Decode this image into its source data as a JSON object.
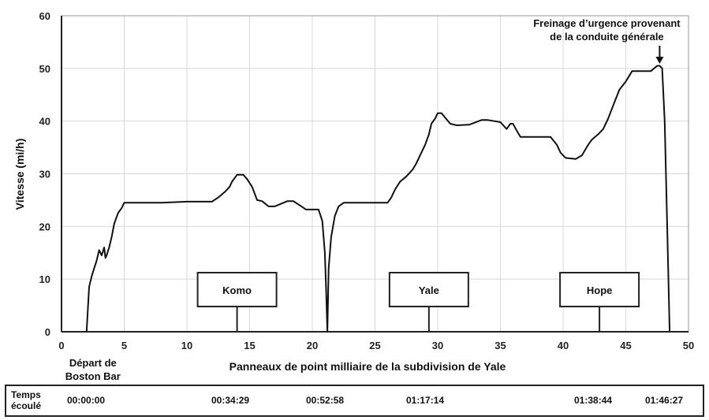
{
  "chart_data": {
    "type": "line",
    "xlabel": "Panneaux de point milliaire de la subdivision de Yale",
    "ylabel": "Vitesse (mi/h)",
    "xlim": [
      0,
      50
    ],
    "ylim": [
      0,
      60
    ],
    "x_ticks": [
      0,
      5,
      10,
      15,
      20,
      25,
      30,
      35,
      40,
      45,
      50
    ],
    "y_ticks": [
      0,
      10,
      20,
      30,
      40,
      50,
      60
    ],
    "grid": true,
    "series": [
      {
        "color": "#111111",
        "x": [
          2.0,
          2.2,
          2.4,
          2.6,
          2.8,
          3.0,
          3.2,
          3.4,
          3.5,
          3.6,
          3.8,
          4.0,
          4.2,
          4.5,
          4.8,
          5.0,
          5.2,
          6.0,
          8.0,
          10.0,
          12.0,
          12.5,
          13.0,
          13.4,
          13.6,
          14.0,
          14.5,
          14.8,
          15.2,
          15.6,
          16.0,
          16.5,
          17.0,
          18.0,
          18.5,
          19.5,
          20.0,
          20.5,
          20.8,
          21.0,
          21.1,
          21.2,
          21.3,
          21.5,
          21.8,
          22.1,
          22.5,
          23.0,
          24.0,
          25.0,
          26.0,
          26.3,
          26.6,
          27.0,
          27.5,
          28.0,
          28.3,
          28.6,
          29.0,
          29.3,
          29.5,
          29.8,
          30.0,
          30.3,
          31.0,
          31.5,
          32.5,
          33.5,
          34.0,
          35.0,
          35.5,
          35.8,
          36.0,
          36.3,
          36.6,
          37.0,
          39.0,
          39.5,
          39.8,
          40.2,
          41.0,
          41.5,
          42.0,
          42.3,
          42.8,
          43.2,
          43.6,
          44.0,
          44.5,
          45.0,
          45.5,
          46.0,
          46.5,
          47.0,
          47.5,
          47.7,
          47.9,
          48.1,
          48.3,
          48.5
        ],
        "y": [
          0,
          8.5,
          10.5,
          12,
          13.5,
          15.5,
          14.5,
          16,
          14,
          14.5,
          16,
          18,
          20.5,
          22.5,
          23.5,
          24.5,
          24.5,
          24.5,
          24.5,
          24.7,
          24.7,
          25.5,
          26.5,
          27.5,
          28.5,
          29.8,
          29.8,
          29,
          27.5,
          25,
          24.8,
          23.8,
          23.8,
          24.8,
          24.8,
          23.2,
          23.2,
          23.2,
          21,
          15,
          8,
          0,
          12,
          18,
          22,
          23.8,
          24.5,
          24.5,
          24.5,
          24.5,
          24.5,
          25.5,
          27,
          28.5,
          29.5,
          30.8,
          32,
          33.5,
          35.5,
          37.5,
          39.5,
          40.5,
          41.5,
          41.5,
          39.5,
          39.2,
          39.3,
          40.2,
          40.2,
          39.8,
          38.5,
          39.5,
          39.5,
          38.2,
          37,
          37,
          37,
          35.5,
          34,
          33,
          32.8,
          33.5,
          35.5,
          36.5,
          37.5,
          38.5,
          40.5,
          43,
          46,
          47.5,
          49.5,
          49.5,
          49.5,
          49.5,
          50.5,
          50.5,
          50,
          40,
          20,
          0
        ]
      }
    ],
    "annotations": [
      {
        "text_lines": [
          "Freinage d’urgence provenant",
          "de la conduite générale"
        ],
        "x": 47.7,
        "y": 50.5,
        "arrow": true
      },
      {
        "text_lines": [
          "Départ de",
          "Boston Bar"
        ],
        "x": 2.0
      }
    ],
    "signs": [
      {
        "label": "Komo",
        "x": 14.0
      },
      {
        "label": "Yale",
        "x": 29.3
      },
      {
        "label": "Hope",
        "x": 42.9
      }
    ]
  },
  "elapsed": {
    "label_lines": [
      "Temps",
      "écoulé"
    ],
    "values": [
      "00:00:00",
      "00:34:29",
      "00:52:58",
      "01:17:14",
      "01:38:44",
      "01:46:27"
    ]
  }
}
